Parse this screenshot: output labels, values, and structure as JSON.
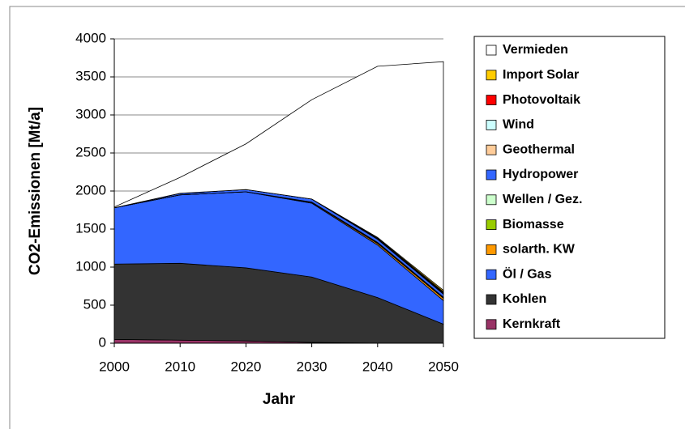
{
  "chart_data": {
    "type": "stacked_area",
    "x": [
      2000,
      2010,
      2020,
      2030,
      2040,
      2050
    ],
    "xlim": [
      2000,
      2050
    ],
    "xticks": [
      2000,
      2010,
      2020,
      2030,
      2040,
      2050
    ],
    "ylim": [
      0,
      4000
    ],
    "yticks": [
      0,
      500,
      1000,
      1500,
      2000,
      2500,
      3000,
      3500,
      4000
    ],
    "xlabel": "Jahr",
    "ylabel": "CO2-Emissionen [Mt/a]",
    "grid": true,
    "legend": "right",
    "series": [
      {
        "name": "Kernkraft",
        "color": "#993366",
        "values": [
          50,
          40,
          30,
          10,
          0,
          0
        ]
      },
      {
        "name": "Kohlen",
        "color": "#333333",
        "values": [
          990,
          1010,
          960,
          860,
          600,
          250
        ]
      },
      {
        "name": "Öl / Gas",
        "color": "#3366ff",
        "values": [
          740,
          900,
          1000,
          970,
          690,
          310
        ]
      },
      {
        "name": "solarth. KW",
        "color": "#ff9900",
        "values": [
          0,
          0,
          0,
          10,
          20,
          30
        ]
      },
      {
        "name": "Biomasse",
        "color": "#99cc00",
        "values": [
          0,
          0,
          0,
          5,
          10,
          10
        ]
      },
      {
        "name": "Wellen / Gez.",
        "color": "#ccffcc",
        "values": [
          0,
          0,
          0,
          0,
          5,
          5
        ]
      },
      {
        "name": "Hydropower",
        "color": "#3366ff",
        "values": [
          0,
          20,
          30,
          40,
          40,
          40
        ]
      },
      {
        "name": "Geothermal",
        "color": "#ffcc99",
        "values": [
          0,
          0,
          0,
          0,
          5,
          10
        ]
      },
      {
        "name": "Wind",
        "color": "#ccffff",
        "values": [
          0,
          0,
          0,
          0,
          5,
          10
        ]
      },
      {
        "name": "Photovoltaik",
        "color": "#ff0000",
        "values": [
          0,
          0,
          0,
          0,
          5,
          10
        ]
      },
      {
        "name": "Import Solar",
        "color": "#ffcc00",
        "values": [
          0,
          0,
          0,
          0,
          10,
          20
        ]
      },
      {
        "name": "Vermieden",
        "color": "#ffffff",
        "values": [
          10,
          210,
          600,
          1305,
          2250,
          3005
        ]
      }
    ]
  }
}
